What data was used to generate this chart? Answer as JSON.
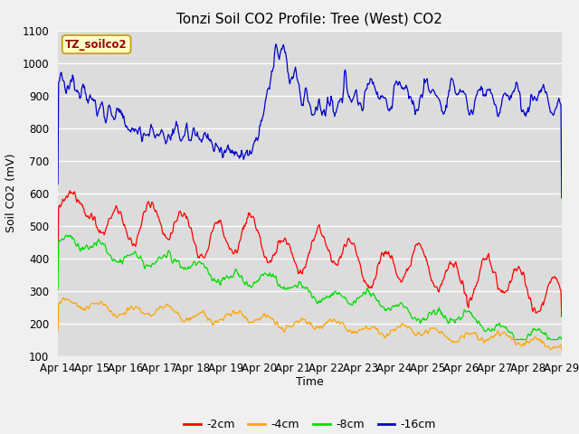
{
  "title": "Tonzi Soil CO2 Profile: Tree (West) CO2",
  "ylabel": "Soil CO2 (mV)",
  "xlabel": "Time",
  "box_label": "TZ_soilco2",
  "ylim": [
    100,
    1100
  ],
  "yticks": [
    100,
    200,
    300,
    400,
    500,
    600,
    700,
    800,
    900,
    1000,
    1100
  ],
  "xtick_labels": [
    "Apr 14",
    "Apr 15",
    "Apr 16",
    "Apr 17",
    "Apr 18",
    "Apr 19",
    "Apr 20",
    "Apr 21",
    "Apr 22",
    "Apr 23",
    "Apr 24",
    "Apr 25",
    "Apr 26",
    "Apr 27",
    "Apr 28",
    "Apr 29"
  ],
  "colors": {
    "2cm": "#ff0000",
    "4cm": "#ffa500",
    "8cm": "#00dd00",
    "16cm": "#0000cc"
  },
  "bg_color": "#dcdcdc",
  "fig_color": "#f0f0f0",
  "title_fontsize": 11,
  "axis_fontsize": 9,
  "tick_fontsize": 8.5
}
